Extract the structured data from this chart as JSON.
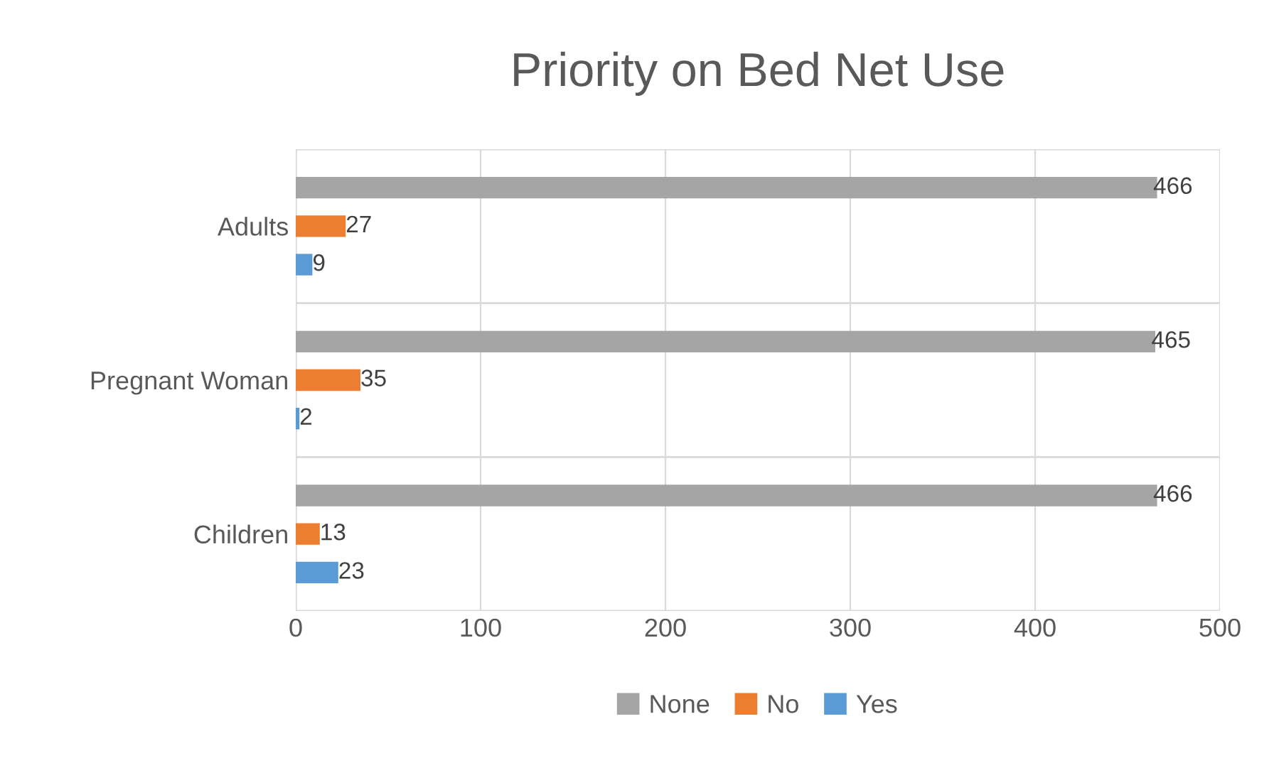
{
  "chart_data": {
    "type": "bar",
    "orientation": "horizontal",
    "title": "Priority on Bed Net Use",
    "categories": [
      "Adults",
      "Pregnant Woman",
      "Children"
    ],
    "series": [
      {
        "name": "None",
        "color": "#a5a5a5",
        "values": [
          466,
          465,
          466
        ]
      },
      {
        "name": "No",
        "color": "#ed7d31",
        "values": [
          27,
          35,
          13
        ]
      },
      {
        "name": "Yes",
        "color": "#5b9bd5",
        "values": [
          9,
          2,
          23
        ]
      }
    ],
    "xlim": [
      0,
      500
    ],
    "xticks": [
      0,
      100,
      200,
      300,
      400,
      500
    ],
    "grid": true,
    "legend": "bottom",
    "data_labels": true
  }
}
